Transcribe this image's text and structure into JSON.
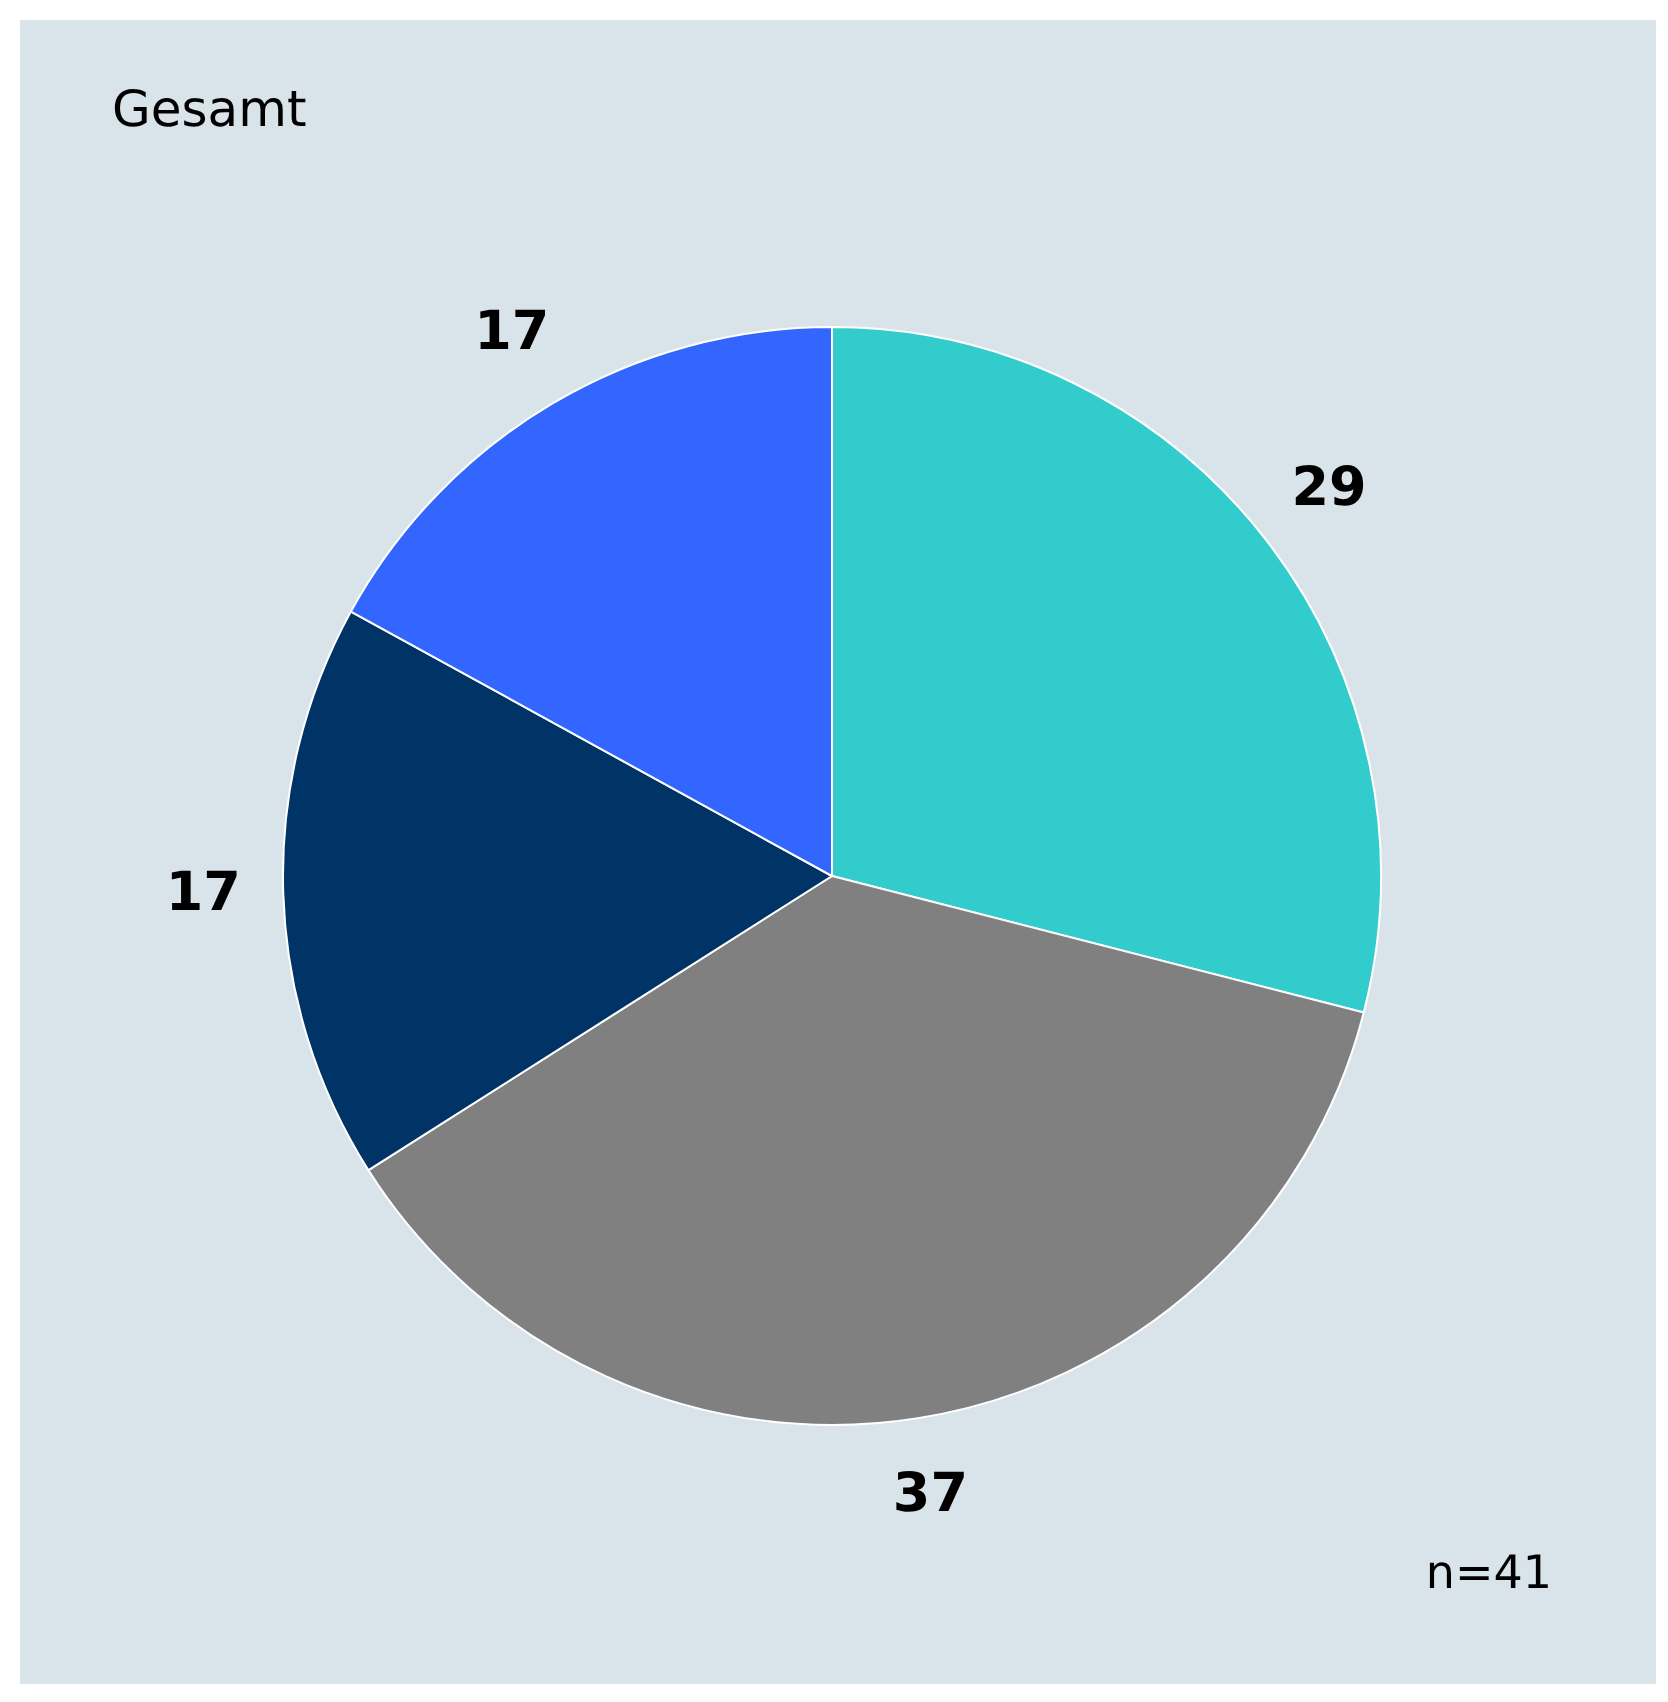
{
  "chart_data": {
    "type": "pie",
    "title": "Gesamt",
    "categories": [
      null,
      null,
      null,
      null
    ],
    "values": [
      29,
      37,
      17,
      17
    ],
    "colors": [
      "#33cccc",
      "#808080",
      "#003366",
      "#3366ff"
    ],
    "data_labels": true,
    "legend": false,
    "annotations": [
      "n=41"
    ]
  }
}
